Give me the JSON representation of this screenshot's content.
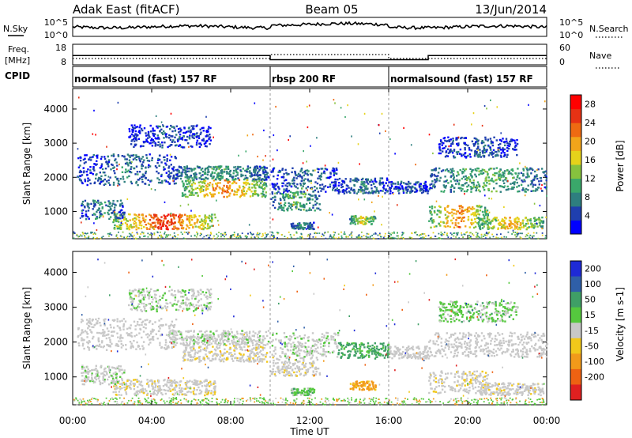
{
  "header": {
    "station": "Adak East (fitACF)",
    "beam": "Beam 05",
    "date": "13/Jun/2014"
  },
  "chart_data": {
    "type": "heatmap",
    "x_range_hours": [
      0,
      24
    ],
    "x_ticks": [
      "00:00",
      "04:00",
      "08:00",
      "12:00",
      "16:00",
      "20:00",
      "00:00"
    ],
    "x_tick_hours": [
      0,
      4,
      8,
      12,
      16,
      20,
      24
    ],
    "xlabel": "Time UT",
    "ylabel": "Slant Range [km]",
    "y_range_km": [
      200,
      4600
    ],
    "y_ticks": [
      1000,
      2000,
      3000,
      4000
    ],
    "mode_boundaries_hours": [
      10,
      16
    ],
    "nsky": {
      "label": "N.Sky",
      "ticks": [
        "10^5",
        "10^0"
      ],
      "right_label": "N.Search",
      "right_ticks": [
        "10^5",
        "10^0"
      ]
    },
    "freq": {
      "label": "Freq.",
      "unit": "[MHz]",
      "ticks": [
        18,
        8
      ],
      "right_label": "Nave",
      "right_ticks": [
        60,
        0
      ],
      "segments": [
        {
          "start": 0,
          "end": 10,
          "freq": 12.5
        },
        {
          "start": 10,
          "end": 18,
          "freq": 10.5
        },
        {
          "start": 18,
          "end": 24,
          "freq": 12.5
        }
      ]
    },
    "cpid": {
      "label": "CPID",
      "modes": [
        {
          "start": 0,
          "end": 10,
          "name": "normalsound (fast) 157 RF"
        },
        {
          "start": 10,
          "end": 16,
          "name": "rbsp 200 RF"
        },
        {
          "start": 16,
          "end": 24,
          "name": "normalsound (fast) 157 RF"
        }
      ]
    },
    "power_scale": {
      "label": "Power [dB]",
      "ticks": [
        4,
        8,
        12,
        16,
        20,
        24,
        28
      ],
      "colors": [
        "#0000ff",
        "#1f3faf",
        "#2e7f7f",
        "#3aa86a",
        "#86c23e",
        "#e6d21a",
        "#f2a51a",
        "#ee6a12",
        "#e63214",
        "#ff0000"
      ]
    },
    "velocity_scale": {
      "label": "Velocity [m s-1]",
      "ticks": [
        200,
        100,
        50,
        15,
        -15,
        -50,
        -100,
        -200
      ],
      "colors": [
        "#1e2ad6",
        "#2f5fa8",
        "#3f9f66",
        "#55c83e",
        "#c8c8c8",
        "#f2c81a",
        "#f29a1a",
        "#ee6212",
        "#e02020"
      ]
    },
    "echo_bands": [
      {
        "t0": 2.0,
        "t1": 7.2,
        "r0": 500,
        "r1": 950,
        "power": 26,
        "vel": -5
      },
      {
        "t0": 0.4,
        "t1": 2.6,
        "r0": 800,
        "r1": 1350,
        "power": 9,
        "vel": 5
      },
      {
        "t0": 5.5,
        "t1": 9.8,
        "r0": 1450,
        "r1": 1950,
        "power": 22,
        "vel": -5
      },
      {
        "t0": 4.8,
        "t1": 9.9,
        "r0": 1950,
        "r1": 2350,
        "power": 10,
        "vel": 5
      },
      {
        "t0": 0.2,
        "t1": 5.2,
        "r0": 1800,
        "r1": 2700,
        "power": 7,
        "vel": 0
      },
      {
        "t0": 2.8,
        "t1": 7.0,
        "r0": 2900,
        "r1": 3550,
        "power": 5,
        "vel": 10
      },
      {
        "t0": 10.0,
        "t1": 12.5,
        "r0": 1050,
        "r1": 1600,
        "power": 12,
        "vel": -3
      },
      {
        "t0": 10.0,
        "t1": 13.4,
        "r0": 1600,
        "r1": 2300,
        "power": 7,
        "vel": 5
      },
      {
        "t0": 13.4,
        "t1": 16.0,
        "r0": 1550,
        "r1": 2000,
        "power": 7,
        "vel": 40
      },
      {
        "t0": 14.0,
        "t1": 15.3,
        "r0": 650,
        "r1": 900,
        "power": 18,
        "vel": -60
      },
      {
        "t0": 11.0,
        "t1": 12.2,
        "r0": 500,
        "r1": 700,
        "power": 9,
        "vel": 25
      },
      {
        "t0": 16.0,
        "t1": 18.0,
        "r0": 1550,
        "r1": 1900,
        "power": 6,
        "vel": 0
      },
      {
        "t0": 18.0,
        "t1": 21.0,
        "r0": 550,
        "r1": 1200,
        "power": 22,
        "vel": -5
      },
      {
        "t0": 20.5,
        "t1": 23.8,
        "r0": 500,
        "r1": 850,
        "power": 20,
        "vel": -5
      },
      {
        "t0": 18.0,
        "t1": 24.0,
        "r0": 1600,
        "r1": 2300,
        "power": 12,
        "vel": 0
      },
      {
        "t0": 18.5,
        "t1": 22.5,
        "r0": 2600,
        "r1": 3200,
        "power": 6,
        "vel": 20
      }
    ]
  }
}
